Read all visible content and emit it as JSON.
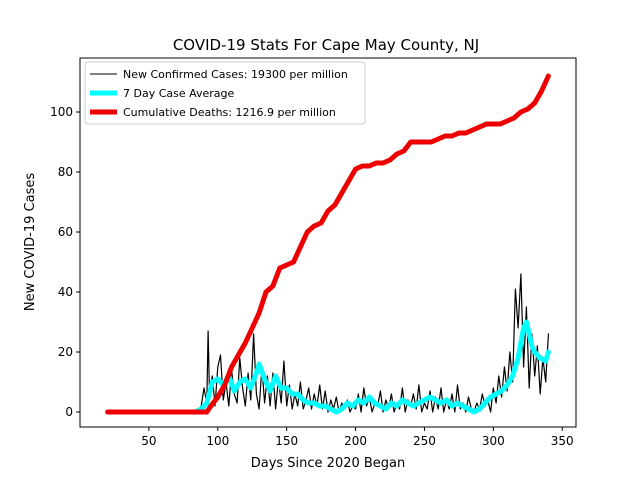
{
  "chart_data": {
    "type": "line",
    "title": "COVID-19 Stats For Cape May County, NJ",
    "xlabel": "Days Since 2020 Began",
    "ylabel": "New COVID-19 Cases",
    "xlim": [
      0,
      360
    ],
    "ylim": [
      -5,
      118
    ],
    "xticks": [
      50,
      100,
      150,
      200,
      250,
      300,
      350
    ],
    "yticks": [
      0,
      20,
      40,
      60,
      80,
      100
    ],
    "grid": false,
    "legend_position": "top-left",
    "series": [
      {
        "name": "New Confirmed Cases: 19300 per million",
        "color": "#000000",
        "role": "daily",
        "x": [
          84,
          86,
          88,
          90,
          92,
          93,
          94,
          96,
          98,
          100,
          102,
          104,
          106,
          108,
          110,
          112,
          114,
          116,
          118,
          120,
          122,
          124,
          126,
          128,
          130,
          132,
          134,
          136,
          138,
          140,
          142,
          144,
          146,
          148,
          150,
          152,
          154,
          156,
          158,
          160,
          162,
          164,
          166,
          168,
          170,
          172,
          174,
          176,
          178,
          180,
          182,
          184,
          186,
          188,
          190,
          192,
          194,
          196,
          198,
          200,
          202,
          204,
          206,
          208,
          210,
          212,
          214,
          216,
          218,
          220,
          222,
          224,
          226,
          228,
          230,
          232,
          234,
          236,
          238,
          240,
          242,
          244,
          246,
          248,
          250,
          252,
          254,
          256,
          258,
          260,
          262,
          264,
          266,
          268,
          270,
          272,
          274,
          276,
          278,
          280,
          282,
          284,
          286,
          288,
          290,
          292,
          294,
          296,
          298,
          300,
          302,
          304,
          306,
          308,
          310,
          312,
          314,
          316,
          318,
          320,
          322,
          324,
          326,
          328,
          330,
          332,
          334,
          336,
          338,
          340
        ],
        "values": [
          0,
          1,
          2,
          8,
          3,
          27,
          6,
          12,
          2,
          15,
          19,
          4,
          10,
          2,
          14,
          6,
          3,
          18,
          8,
          2,
          13,
          4,
          26,
          6,
          1,
          15,
          3,
          12,
          2,
          13,
          1,
          11,
          3,
          17,
          2,
          9,
          1,
          6,
          2,
          10,
          1,
          4,
          8,
          1,
          6,
          2,
          9,
          1,
          7,
          0,
          4,
          1,
          5,
          0,
          3,
          1,
          4,
          0,
          2,
          1,
          6,
          0,
          8,
          2,
          5,
          0,
          3,
          2,
          7,
          0,
          4,
          1,
          6,
          0,
          3,
          1,
          8,
          0,
          4,
          2,
          6,
          1,
          9,
          0,
          3,
          1,
          7,
          0,
          5,
          1,
          8,
          0,
          4,
          1,
          6,
          0,
          9,
          1,
          3,
          0,
          5,
          1,
          0,
          3,
          1,
          6,
          2,
          4,
          0,
          8,
          3,
          12,
          5,
          15,
          7,
          20,
          10,
          41,
          28,
          46,
          15,
          35,
          8,
          26,
          12,
          22,
          6,
          18,
          10,
          26
        ]
      },
      {
        "name": "7 Day Case Average",
        "color": "#00ffff",
        "role": "average",
        "x": [
          84,
          88,
          92,
          96,
          100,
          104,
          108,
          112,
          116,
          120,
          124,
          128,
          130,
          134,
          138,
          142,
          146,
          150,
          154,
          158,
          162,
          166,
          170,
          174,
          178,
          182,
          186,
          190,
          194,
          198,
          202,
          206,
          210,
          214,
          218,
          222,
          226,
          230,
          234,
          238,
          242,
          246,
          250,
          254,
          258,
          262,
          266,
          270,
          274,
          278,
          282,
          286,
          290,
          294,
          298,
          302,
          306,
          310,
          314,
          318,
          322,
          324,
          326,
          328,
          330,
          334,
          338,
          340
        ],
        "values": [
          0,
          1,
          3,
          10,
          11,
          9,
          12,
          7,
          10,
          11,
          8,
          13,
          16,
          11,
          7,
          12,
          8,
          8,
          6,
          6,
          4,
          3,
          3,
          2,
          2,
          1,
          0,
          1,
          3,
          2,
          4,
          3,
          5,
          3,
          2,
          1,
          3,
          2,
          4,
          3,
          2,
          3,
          4,
          5,
          4,
          3,
          4,
          2,
          3,
          2,
          1,
          0,
          1,
          3,
          5,
          6,
          7,
          9,
          12,
          18,
          28,
          30,
          26,
          22,
          20,
          18,
          17,
          20
        ]
      },
      {
        "name": "Cumulative Deaths: 1216.9 per million",
        "color": "#ee0000",
        "role": "cumulative",
        "x": [
          20,
          40,
          60,
          80,
          92,
          95,
          100,
          105,
          110,
          115,
          120,
          125,
          130,
          135,
          140,
          145,
          150,
          155,
          160,
          165,
          170,
          175,
          180,
          185,
          190,
          195,
          200,
          205,
          210,
          215,
          220,
          225,
          230,
          235,
          240,
          245,
          250,
          255,
          260,
          265,
          270,
          275,
          280,
          285,
          290,
          295,
          300,
          305,
          310,
          315,
          320,
          325,
          330,
          335,
          340
        ],
        "values": [
          0,
          0,
          0,
          0,
          0,
          2,
          5,
          9,
          15,
          19,
          23,
          28,
          33,
          40,
          42,
          48,
          49,
          50,
          55,
          60,
          62,
          63,
          67,
          69,
          73,
          77,
          81,
          82,
          82,
          83,
          83,
          84,
          86,
          87,
          90,
          90,
          90,
          90,
          91,
          92,
          92,
          93,
          93,
          94,
          95,
          96,
          96,
          96,
          97,
          98,
          100,
          101,
          103,
          107,
          112
        ]
      }
    ]
  }
}
